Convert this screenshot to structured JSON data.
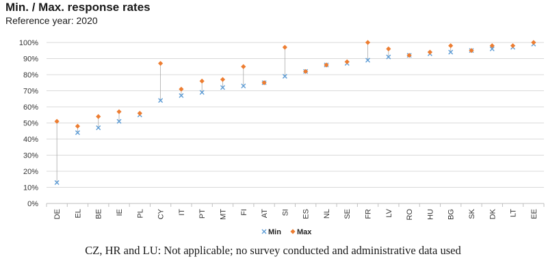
{
  "title": "Min. / Max. response rates",
  "subtitle": "Reference year: 2020",
  "footnote": "CZ, HR and LU: Not applicable; no survey conducted and administrative data used",
  "colors": {
    "min": "#5b9bd5",
    "max": "#ed7d31",
    "grid": "#d9d9d9",
    "connector": "#a9a9a9",
    "axis": "#bfbfbf"
  },
  "chart_data": {
    "type": "scatter",
    "categories": [
      "DE",
      "EL",
      "BE",
      "IE",
      "PL",
      "CY",
      "IT",
      "PT",
      "MT",
      "FI",
      "AT",
      "SI",
      "ES",
      "NL",
      "SE",
      "FR",
      "LV",
      "RO",
      "HU",
      "BG",
      "SK",
      "DK",
      "LT",
      "EE"
    ],
    "series": [
      {
        "name": "Min",
        "marker": "x",
        "values": [
          13,
          44,
          47,
          51,
          55,
          64,
          67,
          69,
          72,
          73,
          75,
          79,
          82,
          86,
          87,
          89,
          91,
          92,
          93,
          94,
          95,
          96,
          97,
          99
        ]
      },
      {
        "name": "Max",
        "marker": "diamond",
        "values": [
          51,
          48,
          54,
          57,
          56,
          87,
          71,
          76,
          77,
          85,
          75,
          97,
          82,
          86,
          88,
          100,
          96,
          92,
          94,
          98,
          95,
          98,
          98,
          100
        ]
      }
    ],
    "yticks": [
      "0%",
      "10%",
      "20%",
      "30%",
      "40%",
      "50%",
      "60%",
      "70%",
      "80%",
      "90%",
      "100%"
    ],
    "ylim": [
      0,
      100
    ],
    "grid": true,
    "legend": "bottom"
  }
}
